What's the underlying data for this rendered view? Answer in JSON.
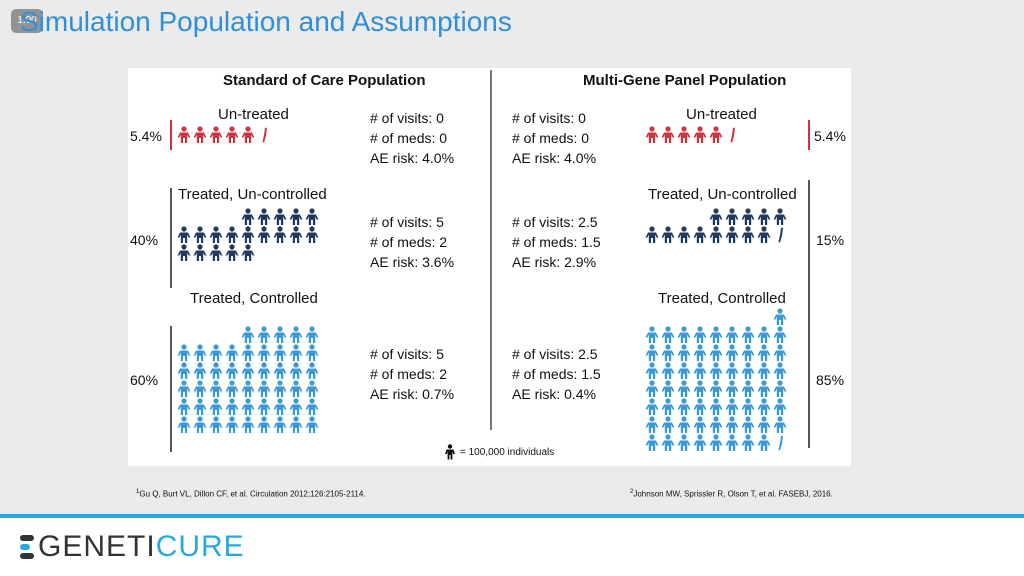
{
  "slide": {
    "badge": "1.00",
    "title": "Simulation Population and Assumptions"
  },
  "colors": {
    "untreated": "#d2323a",
    "uncontrolled": "#1f3a5e",
    "controlled": "#3a9ad6"
  },
  "soc": {
    "heading": "Standard of Care Population",
    "untreated": {
      "label": "Un-treated",
      "pct": "5.4%",
      "stats": [
        "# of visits: 0",
        "# of meds: 0",
        "AE risk: 4.0%"
      ]
    },
    "uncontrolled": {
      "label": "Treated, Un-controlled",
      "pct": "40%",
      "stats": [
        "# of visits: 5",
        "# of meds: 2",
        "AE risk: 3.6%"
      ]
    },
    "controlled": {
      "label": "Treated, Controlled",
      "pct": "60%",
      "stats": [
        "# of visits: 5",
        "# of meds: 2",
        "AE risk: 0.7%"
      ]
    }
  },
  "mgp": {
    "heading": "Multi-Gene Panel Population",
    "untreated": {
      "label": "Un-treated",
      "pct": "5.4%",
      "stats": [
        "# of visits: 0",
        "# of meds: 0",
        "AE risk: 4.0%"
      ]
    },
    "uncontrolled": {
      "label": "Treated, Un-controlled",
      "pct": "15%",
      "stats": [
        "# of visits: 2.5",
        "# of meds: 1.5",
        "AE risk: 2.9%"
      ]
    },
    "controlled": {
      "label": "Treated, Controlled",
      "pct": "85%",
      "stats": [
        "# of visits: 2.5",
        "# of meds: 1.5",
        "AE risk: 0.4%"
      ]
    }
  },
  "legend": {
    "text": "= 100,000 individuals"
  },
  "references": {
    "left_sup": "1",
    "left": "Gu Q, Burt VL, Dillon CF, et al. Circulation 2012;126:2105-2114.",
    "right_sup": "2",
    "right": "Johnson MW, Sprissler R, Olson T, et al. FASEBJ, 2016."
  },
  "logo": {
    "part1": "GENETI",
    "part2": "CURE",
    "color1": "#333333",
    "color2": "#29a8df"
  }
}
